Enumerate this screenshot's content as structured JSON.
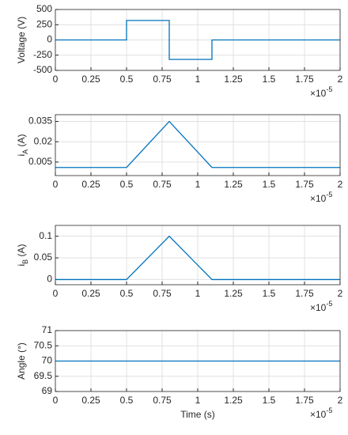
{
  "chart_data": [
    {
      "type": "line",
      "ylabel_parts": [
        {
          "text": "Voltage (V)"
        }
      ],
      "x": [
        0,
        0.5,
        0.5,
        0.8,
        0.8,
        1.1,
        1.1,
        2
      ],
      "values": [
        0,
        0,
        320,
        320,
        -320,
        -320,
        0,
        0
      ],
      "color": "#0072bd",
      "xlim": [
        0,
        2
      ],
      "xticks": [
        0,
        0.25,
        0.5,
        0.75,
        1,
        1.25,
        1.5,
        1.75,
        2
      ],
      "ylim": [
        -500,
        500
      ],
      "yticks": [
        -500,
        -250,
        0,
        250,
        500
      ],
      "grid": true,
      "x_multiplier": [
        {
          "text": "×10"
        },
        {
          "text": "-5",
          "sup": true
        }
      ]
    },
    {
      "type": "line",
      "ylabel_parts": [
        {
          "text": "i"
        },
        {
          "text": "A",
          "sub": true
        },
        {
          "text": " (A)"
        }
      ],
      "x": [
        0,
        0.5,
        0.8,
        1.1,
        2
      ],
      "values": [
        0.001,
        0.001,
        0.035,
        0.001,
        0.001
      ],
      "color": "#0072bd",
      "xlim": [
        0,
        2
      ],
      "xticks": [
        0,
        0.25,
        0.5,
        0.75,
        1,
        1.25,
        1.5,
        1.75,
        2
      ],
      "ylim": [
        -0.005,
        0.04
      ],
      "yticks": [
        0.005,
        0.02,
        0.035
      ],
      "grid": true,
      "x_multiplier": [
        {
          "text": "×10"
        },
        {
          "text": "-5",
          "sup": true
        }
      ]
    },
    {
      "type": "line",
      "ylabel_parts": [
        {
          "text": "i"
        },
        {
          "text": "B",
          "sub": true
        },
        {
          "text": " (A)"
        }
      ],
      "x": [
        0,
        0.5,
        0.8,
        1.1,
        2
      ],
      "values": [
        0,
        0,
        0.1,
        0,
        0
      ],
      "color": "#0072bd",
      "xlim": [
        0,
        2
      ],
      "xticks": [
        0,
        0.25,
        0.5,
        0.75,
        1,
        1.25,
        1.5,
        1.75,
        2
      ],
      "ylim": [
        -0.012,
        0.125
      ],
      "yticks": [
        0,
        0.05,
        0.1
      ],
      "grid": true,
      "x_multiplier": [
        {
          "text": "×10"
        },
        {
          "text": "-5",
          "sup": true
        }
      ]
    },
    {
      "type": "line",
      "ylabel_parts": [
        {
          "text": "Angle (°)"
        }
      ],
      "xlabel": "Time (s)",
      "x": [
        0,
        2
      ],
      "values": [
        70,
        70
      ],
      "color": "#0072bd",
      "xlim": [
        0,
        2
      ],
      "xticks": [
        0,
        0.25,
        0.5,
        0.75,
        1,
        1.25,
        1.5,
        1.75,
        2
      ],
      "ylim": [
        69,
        71
      ],
      "yticks": [
        69,
        69.5,
        70,
        70.5,
        71
      ],
      "grid": true,
      "x_multiplier": [
        {
          "text": "×10"
        },
        {
          "text": "-5",
          "sup": true
        }
      ]
    }
  ]
}
